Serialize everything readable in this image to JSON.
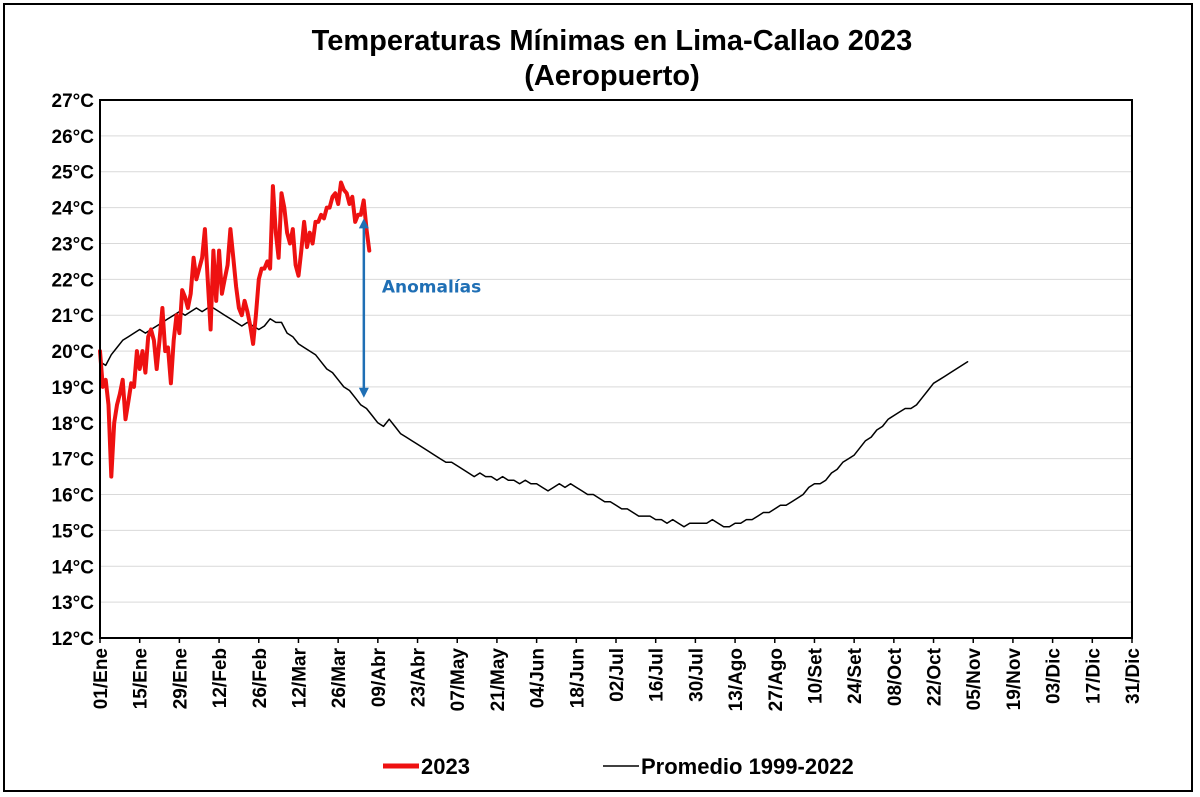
{
  "chart_data": {
    "type": "line",
    "title": "Temperaturas Mínimas en Lima-Callao 2023",
    "subtitle": "(Aeropuerto)",
    "xlabel": "",
    "ylabel": "",
    "x_range_days": [
      1,
      365
    ],
    "ylim": [
      12,
      27
    ],
    "y_ticks": [
      "12°C",
      "13°C",
      "14°C",
      "15°C",
      "16°C",
      "17°C",
      "18°C",
      "19°C",
      "20°C",
      "21°C",
      "22°C",
      "23°C",
      "24°C",
      "25°C",
      "26°C",
      "27°C"
    ],
    "x_ticks": [
      {
        "day": 1,
        "label": "01/Ene"
      },
      {
        "day": 15,
        "label": "15/Ene"
      },
      {
        "day": 29,
        "label": "29/Ene"
      },
      {
        "day": 43,
        "label": "12/Feb"
      },
      {
        "day": 57,
        "label": "26/Feb"
      },
      {
        "day": 71,
        "label": "12/Mar"
      },
      {
        "day": 85,
        "label": "26/Mar"
      },
      {
        "day": 99,
        "label": "09/Abr"
      },
      {
        "day": 113,
        "label": "23/Abr"
      },
      {
        "day": 127,
        "label": "07/May"
      },
      {
        "day": 141,
        "label": "21/May"
      },
      {
        "day": 155,
        "label": "04/Jun"
      },
      {
        "day": 169,
        "label": "18/Jun"
      },
      {
        "day": 183,
        "label": "02/Jul"
      },
      {
        "day": 197,
        "label": "16/Jul"
      },
      {
        "day": 211,
        "label": "30/Jul"
      },
      {
        "day": 225,
        "label": "13/Ago"
      },
      {
        "day": 239,
        "label": "27/Ago"
      },
      {
        "day": 253,
        "label": "10/Set"
      },
      {
        "day": 267,
        "label": "24/Set"
      },
      {
        "day": 281,
        "label": "08/Oct"
      },
      {
        "day": 295,
        "label": "22/Oct"
      },
      {
        "day": 309,
        "label": "05/Nov"
      },
      {
        "day": 323,
        "label": "19/Nov"
      },
      {
        "day": 337,
        "label": "03/Dic"
      },
      {
        "day": 351,
        "label": "17/Dic"
      },
      {
        "day": 365,
        "label": "31/Dic"
      }
    ],
    "grid": true,
    "legend_position": "bottom",
    "series": [
      {
        "name": "2023",
        "color": "#ee1111",
        "points": [
          [
            1,
            20.0
          ],
          [
            2,
            19.0
          ],
          [
            3,
            19.2
          ],
          [
            4,
            18.5
          ],
          [
            5,
            16.5
          ],
          [
            6,
            18.0
          ],
          [
            7,
            18.5
          ],
          [
            8,
            18.8
          ],
          [
            9,
            19.2
          ],
          [
            10,
            18.1
          ],
          [
            11,
            18.6
          ],
          [
            12,
            19.1
          ],
          [
            13,
            19.0
          ],
          [
            14,
            20.0
          ],
          [
            15,
            19.5
          ],
          [
            16,
            20.0
          ],
          [
            17,
            19.4
          ],
          [
            18,
            20.4
          ],
          [
            19,
            20.6
          ],
          [
            20,
            20.3
          ],
          [
            21,
            19.5
          ],
          [
            22,
            20.3
          ],
          [
            23,
            21.2
          ],
          [
            24,
            20.0
          ],
          [
            25,
            20.1
          ],
          [
            26,
            19.1
          ],
          [
            27,
            20.3
          ],
          [
            28,
            21.0
          ],
          [
            29,
            20.5
          ],
          [
            30,
            21.7
          ],
          [
            31,
            21.5
          ],
          [
            32,
            21.2
          ],
          [
            33,
            21.6
          ],
          [
            34,
            22.6
          ],
          [
            35,
            22.0
          ],
          [
            36,
            22.3
          ],
          [
            37,
            22.6
          ],
          [
            38,
            23.4
          ],
          [
            39,
            22.0
          ],
          [
            40,
            20.6
          ],
          [
            41,
            22.8
          ],
          [
            42,
            21.4
          ],
          [
            43,
            22.8
          ],
          [
            44,
            21.6
          ],
          [
            45,
            22.0
          ],
          [
            46,
            22.4
          ],
          [
            47,
            23.4
          ],
          [
            48,
            22.6
          ],
          [
            49,
            21.8
          ],
          [
            50,
            21.2
          ],
          [
            51,
            21.0
          ],
          [
            52,
            21.4
          ],
          [
            53,
            21.1
          ],
          [
            54,
            20.7
          ],
          [
            55,
            20.2
          ],
          [
            56,
            21.0
          ],
          [
            57,
            22.0
          ],
          [
            58,
            22.3
          ],
          [
            59,
            22.3
          ],
          [
            60,
            22.5
          ],
          [
            61,
            22.3
          ],
          [
            62,
            24.6
          ],
          [
            63,
            23.3
          ],
          [
            64,
            22.6
          ],
          [
            65,
            24.4
          ],
          [
            66,
            24.0
          ],
          [
            67,
            23.3
          ],
          [
            68,
            23.0
          ],
          [
            69,
            23.4
          ],
          [
            70,
            22.4
          ],
          [
            71,
            22.1
          ],
          [
            72,
            22.8
          ],
          [
            73,
            23.6
          ],
          [
            74,
            22.9
          ],
          [
            75,
            23.3
          ],
          [
            76,
            23.0
          ],
          [
            77,
            23.6
          ],
          [
            78,
            23.6
          ],
          [
            79,
            23.8
          ],
          [
            80,
            23.7
          ],
          [
            81,
            24.0
          ],
          [
            82,
            24.0
          ],
          [
            83,
            24.3
          ],
          [
            84,
            24.4
          ],
          [
            85,
            24.1
          ],
          [
            86,
            24.7
          ],
          [
            87,
            24.5
          ],
          [
            88,
            24.4
          ],
          [
            89,
            24.1
          ],
          [
            90,
            24.3
          ],
          [
            91,
            23.6
          ],
          [
            92,
            23.8
          ],
          [
            93,
            23.8
          ],
          [
            94,
            24.2
          ],
          [
            95,
            23.4
          ],
          [
            96,
            22.8
          ]
        ]
      },
      {
        "name": "Promedio 1999-2022",
        "color": "#000000",
        "points": [
          [
            1,
            19.7
          ],
          [
            3,
            19.6
          ],
          [
            5,
            19.9
          ],
          [
            7,
            20.1
          ],
          [
            9,
            20.3
          ],
          [
            11,
            20.4
          ],
          [
            13,
            20.5
          ],
          [
            15,
            20.6
          ],
          [
            17,
            20.5
          ],
          [
            19,
            20.6
          ],
          [
            21,
            20.7
          ],
          [
            23,
            20.8
          ],
          [
            25,
            20.9
          ],
          [
            27,
            21.0
          ],
          [
            29,
            21.1
          ],
          [
            31,
            21.0
          ],
          [
            33,
            21.1
          ],
          [
            35,
            21.2
          ],
          [
            37,
            21.1
          ],
          [
            39,
            21.2
          ],
          [
            41,
            21.2
          ],
          [
            43,
            21.1
          ],
          [
            45,
            21.0
          ],
          [
            47,
            20.9
          ],
          [
            49,
            20.8
          ],
          [
            51,
            20.7
          ],
          [
            53,
            20.8
          ],
          [
            55,
            20.7
          ],
          [
            57,
            20.6
          ],
          [
            59,
            20.7
          ],
          [
            61,
            20.9
          ],
          [
            63,
            20.8
          ],
          [
            65,
            20.8
          ],
          [
            67,
            20.5
          ],
          [
            69,
            20.4
          ],
          [
            71,
            20.2
          ],
          [
            73,
            20.1
          ],
          [
            75,
            20.0
          ],
          [
            77,
            19.9
          ],
          [
            79,
            19.7
          ],
          [
            81,
            19.5
          ],
          [
            83,
            19.4
          ],
          [
            85,
            19.2
          ],
          [
            87,
            19.0
          ],
          [
            89,
            18.9
          ],
          [
            91,
            18.7
          ],
          [
            93,
            18.5
          ],
          [
            95,
            18.4
          ],
          [
            97,
            18.2
          ],
          [
            99,
            18.0
          ],
          [
            101,
            17.9
          ],
          [
            103,
            18.1
          ],
          [
            105,
            17.9
          ],
          [
            107,
            17.7
          ],
          [
            109,
            17.6
          ],
          [
            111,
            17.5
          ],
          [
            113,
            17.4
          ],
          [
            115,
            17.3
          ],
          [
            117,
            17.2
          ],
          [
            119,
            17.1
          ],
          [
            121,
            17.0
          ],
          [
            123,
            16.9
          ],
          [
            125,
            16.9
          ],
          [
            127,
            16.8
          ],
          [
            129,
            16.7
          ],
          [
            131,
            16.6
          ],
          [
            133,
            16.5
          ],
          [
            135,
            16.6
          ],
          [
            137,
            16.5
          ],
          [
            139,
            16.5
          ],
          [
            141,
            16.4
          ],
          [
            143,
            16.5
          ],
          [
            145,
            16.4
          ],
          [
            147,
            16.4
          ],
          [
            149,
            16.3
          ],
          [
            151,
            16.4
          ],
          [
            153,
            16.3
          ],
          [
            155,
            16.3
          ],
          [
            157,
            16.2
          ],
          [
            159,
            16.1
          ],
          [
            161,
            16.2
          ],
          [
            163,
            16.3
          ],
          [
            165,
            16.2
          ],
          [
            167,
            16.3
          ],
          [
            169,
            16.2
          ],
          [
            171,
            16.1
          ],
          [
            173,
            16.0
          ],
          [
            175,
            16.0
          ],
          [
            177,
            15.9
          ],
          [
            179,
            15.8
          ],
          [
            181,
            15.8
          ],
          [
            183,
            15.7
          ],
          [
            185,
            15.6
          ],
          [
            187,
            15.6
          ],
          [
            189,
            15.5
          ],
          [
            191,
            15.4
          ],
          [
            193,
            15.4
          ],
          [
            195,
            15.4
          ],
          [
            197,
            15.3
          ],
          [
            199,
            15.3
          ],
          [
            201,
            15.2
          ],
          [
            203,
            15.3
          ],
          [
            205,
            15.2
          ],
          [
            207,
            15.1
          ],
          [
            209,
            15.2
          ],
          [
            211,
            15.2
          ],
          [
            213,
            15.2
          ],
          [
            215,
            15.2
          ],
          [
            217,
            15.3
          ],
          [
            219,
            15.2
          ],
          [
            221,
            15.1
          ],
          [
            223,
            15.1
          ],
          [
            225,
            15.2
          ],
          [
            227,
            15.2
          ],
          [
            229,
            15.3
          ],
          [
            231,
            15.3
          ],
          [
            233,
            15.4
          ],
          [
            235,
            15.5
          ],
          [
            237,
            15.5
          ],
          [
            239,
            15.6
          ],
          [
            241,
            15.7
          ],
          [
            243,
            15.7
          ],
          [
            245,
            15.8
          ],
          [
            247,
            15.9
          ],
          [
            249,
            16.0
          ],
          [
            251,
            16.2
          ],
          [
            253,
            16.3
          ],
          [
            255,
            16.3
          ],
          [
            257,
            16.4
          ],
          [
            259,
            16.6
          ],
          [
            261,
            16.7
          ],
          [
            263,
            16.9
          ],
          [
            265,
            17.0
          ],
          [
            267,
            17.1
          ],
          [
            269,
            17.3
          ],
          [
            271,
            17.5
          ],
          [
            273,
            17.6
          ],
          [
            275,
            17.8
          ],
          [
            277,
            17.9
          ],
          [
            279,
            18.1
          ],
          [
            281,
            18.2
          ],
          [
            283,
            18.3
          ],
          [
            285,
            18.4
          ],
          [
            287,
            18.4
          ],
          [
            289,
            18.5
          ],
          [
            291,
            18.7
          ],
          [
            293,
            18.9
          ],
          [
            295,
            19.1
          ],
          [
            297,
            19.2
          ],
          [
            299,
            19.3
          ],
          [
            301,
            19.4
          ],
          [
            303,
            19.5
          ],
          [
            305,
            19.6
          ],
          [
            307,
            19.7
          ]
        ]
      }
    ],
    "annotations": [
      {
        "text": "Anomalías",
        "color": "#1f6fb5",
        "day": 93,
        "from": 18.7,
        "to": 23.7
      }
    ]
  }
}
